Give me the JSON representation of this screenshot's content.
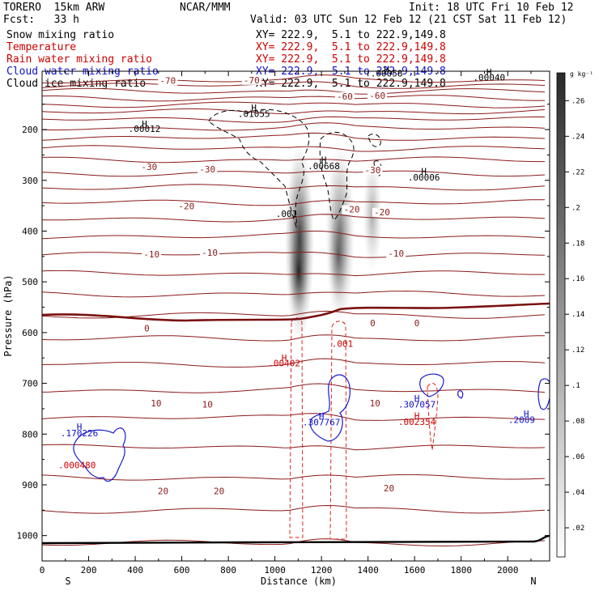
{
  "header": {
    "model": "TORERO  15km ARW",
    "org": "NCAR/MMM",
    "init": "Init: 18 UTC Fri 10 Feb 12",
    "fcst": "Fcst:   33 h",
    "valid": "Valid: 03 UTC Sun 12 Feb 12 (21 CST Sat 11 Feb 12)"
  },
  "legend": [
    {
      "name": "Snow mixing ratio",
      "xy": "XY= 222.9,  5.1 to 222.9,149.8",
      "color": "#000000"
    },
    {
      "name": "Temperature",
      "xy": "XY= 222.9,  5.1 to 222.9,149.8",
      "color": "#cc0000"
    },
    {
      "name": "Rain water mixing ratio",
      "xy": "XY= 222.9,  5.1 to 222.9,149.8",
      "color": "#cc0000"
    },
    {
      "name": "Cloud water mixing ratio",
      "xy": "XY= 222.9,  5.1 to 222.9,149.8",
      "color": "#1010cc"
    },
    {
      "name": "Cloud ice mixing ratio",
      "xy": "XY= 222.9,  5.1 to 222.9,149.8",
      "color": "#000000"
    }
  ],
  "chart_data": {
    "type": "cross-section",
    "xlabel": "Distance (km)",
    "ylabel": "Pressure (hPa)",
    "xlim": [
      0,
      2180
    ],
    "ylim": [
      1050,
      85
    ],
    "x_ticks": [
      0,
      200,
      400,
      600,
      800,
      1000,
      1200,
      1400,
      1600,
      1800,
      2000
    ],
    "y_ticks": [
      200,
      300,
      400,
      500,
      600,
      700,
      800,
      900,
      1000
    ],
    "end_labels": {
      "left": "S",
      "right": "N"
    },
    "colorbar": {
      "unit": "g kg⁻¹",
      "ticks": [
        ".02",
        ".04",
        ".06",
        ".08",
        ".1",
        ".12",
        ".14",
        ".16",
        ".18",
        ".2",
        ".22",
        ".24",
        ".26"
      ]
    },
    "temperature_labels": [
      {
        "text": "-70",
        "x": 540,
        "p": 108
      },
      {
        "text": "-70",
        "x": 900,
        "p": 107
      },
      {
        "text": "-60",
        "x": 1300,
        "p": 139
      },
      {
        "text": "-60",
        "x": 1440,
        "p": 138
      },
      {
        "text": "-30",
        "x": 460,
        "p": 278
      },
      {
        "text": "-30",
        "x": 710,
        "p": 283
      },
      {
        "text": "-30",
        "x": 1420,
        "p": 284
      },
      {
        "text": "-20",
        "x": 620,
        "p": 355
      },
      {
        "text": "-20",
        "x": 1330,
        "p": 362
      },
      {
        "text": "-20",
        "x": 1460,
        "p": 367
      },
      {
        "text": "-10",
        "x": 470,
        "p": 450
      },
      {
        "text": "-10",
        "x": 720,
        "p": 447
      },
      {
        "text": "-10",
        "x": 1520,
        "p": 449
      },
      {
        "text": "0",
        "x": 450,
        "p": 596
      },
      {
        "text": "0",
        "x": 1420,
        "p": 586
      },
      {
        "text": "0",
        "x": 1610,
        "p": 586
      },
      {
        "text": "10",
        "x": 490,
        "p": 744
      },
      {
        "text": "10",
        "x": 710,
        "p": 746
      },
      {
        "text": "10",
        "x": 1430,
        "p": 744
      },
      {
        "text": "20",
        "x": 520,
        "p": 917
      },
      {
        "text": "20",
        "x": 760,
        "p": 917
      },
      {
        "text": "20",
        "x": 1490,
        "p": 911
      }
    ],
    "annotations": [
      {
        "text": "H",
        "x": 440,
        "p": 195,
        "color": "#000000"
      },
      {
        "text": ".00012",
        "x": 440,
        "p": 205,
        "color": "#000000"
      },
      {
        "text": "H",
        "x": 910,
        "p": 163,
        "color": "#000000"
      },
      {
        "text": ".01055",
        "x": 910,
        "p": 175,
        "color": "#000000"
      },
      {
        "text": "H",
        "x": 1210,
        "p": 266,
        "color": "#000000"
      },
      {
        "text": ".00668",
        "x": 1210,
        "p": 278,
        "color": "#000000"
      },
      {
        "text": "H",
        "x": 1640,
        "p": 288,
        "color": "#000000"
      },
      {
        "text": ".00006",
        "x": 1640,
        "p": 300,
        "color": "#000000"
      },
      {
        "text": "H",
        "x": 1920,
        "p": 93,
        "color": "#000000"
      },
      {
        "text": ".00040",
        "x": 1920,
        "p": 103,
        "color": "#000000"
      },
      {
        "text": "H",
        "x": 1480,
        "p": 87,
        "color": "#000000"
      },
      {
        "text": ".00058",
        "x": 1480,
        "p": 95,
        "color": "#000000"
      },
      {
        "text": ".001",
        "x": 1050,
        "p": 372,
        "color": "#000000"
      },
      {
        "text": ".001",
        "x": 1290,
        "p": 628,
        "color": "#cc0000"
      },
      {
        "text": "H",
        "x": 1040,
        "p": 656,
        "color": "#cc0000"
      },
      {
        "text": ".00402",
        "x": 1040,
        "p": 666,
        "color": "#cc0000"
      },
      {
        "text": "H",
        "x": 1200,
        "p": 771,
        "color": "#1010cc"
      },
      {
        "text": ".307767",
        "x": 1200,
        "p": 783,
        "color": "#1010cc"
      },
      {
        "text": "H",
        "x": 1610,
        "p": 736,
        "color": "#1010cc"
      },
      {
        "text": ".307057",
        "x": 1610,
        "p": 748,
        "color": "#1010cc"
      },
      {
        "text": "H",
        "x": 1610,
        "p": 770,
        "color": "#cc0000"
      },
      {
        "text": ".002354",
        "x": 1610,
        "p": 782,
        "color": "#cc0000"
      },
      {
        "text": "H",
        "x": 2080,
        "p": 766,
        "color": "#1010cc"
      },
      {
        "text": ".2009",
        "x": 2060,
        "p": 778,
        "color": "#1010cc"
      },
      {
        "text": "H",
        "x": 160,
        "p": 792,
        "color": "#1010cc"
      },
      {
        "text": ".170226",
        "x": 160,
        "p": 804,
        "color": "#1010cc"
      },
      {
        "text": ".000480",
        "x": 150,
        "p": 867,
        "color": "#cc0000"
      }
    ]
  }
}
